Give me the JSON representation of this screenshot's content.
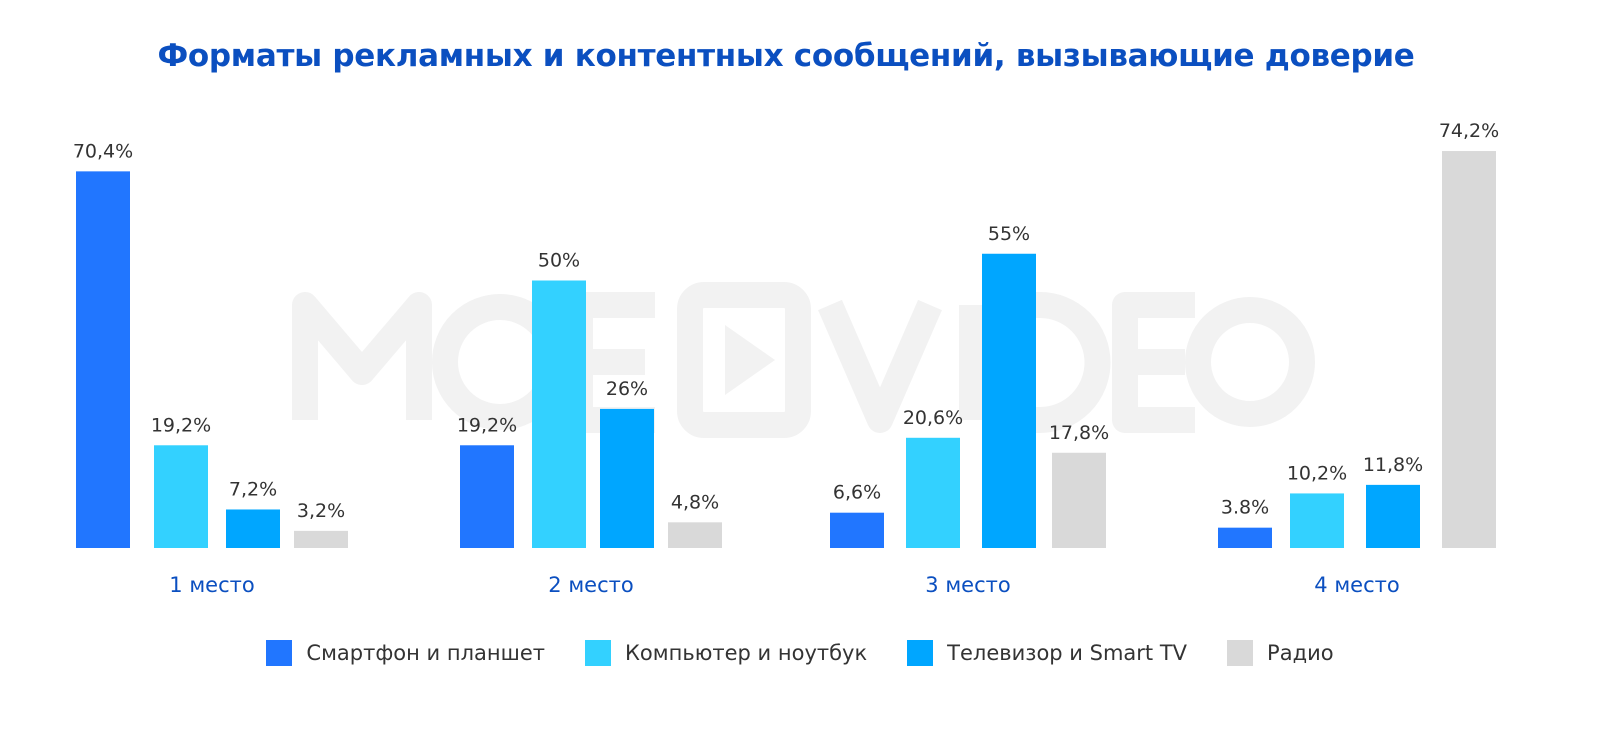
{
  "chart_data": {
    "type": "bar",
    "title": "Форматы рекламных и контентных сообщений, вызывающие доверие",
    "categories": [
      "1 место",
      "2 место",
      "3 место",
      "4 место"
    ],
    "series": [
      {
        "name": "Смартфон и планшет",
        "color": "#2176FF",
        "values": [
          70.4,
          19.2,
          6.6,
          3.8
        ],
        "labels": [
          "70,4%",
          "19,2%",
          "6,6%",
          "3.8%"
        ]
      },
      {
        "name": "Компьютер и ноутбук",
        "color": "#33D1FF",
        "values": [
          19.2,
          50,
          20.6,
          10.2
        ],
        "labels": [
          "19,2%",
          "50%",
          "20,6%",
          "10,2%"
        ]
      },
      {
        "name": "Телевизор и Smart TV",
        "color": "#00A6FF",
        "values": [
          7.2,
          26,
          55,
          11.8
        ],
        "labels": [
          "7,2%",
          "26%",
          "55%",
          "11,8%"
        ]
      },
      {
        "name": "Радио",
        "color": "#D9D9D9",
        "values": [
          3.2,
          4.8,
          17.8,
          74.2
        ],
        "labels": [
          "3,2%",
          "4,8%",
          "17,8%",
          "74,2%"
        ]
      }
    ],
    "ylim": [
      0,
      80
    ],
    "grid": false,
    "legend": "bottom"
  },
  "watermark": "MOE VIDEO",
  "colors": {
    "title": "#0b4fc0",
    "category_label": "#0b4fc0"
  }
}
